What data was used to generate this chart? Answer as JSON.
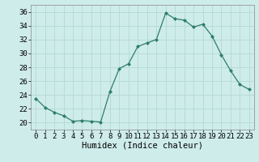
{
  "x": [
    0,
    1,
    2,
    3,
    4,
    5,
    6,
    7,
    8,
    9,
    10,
    11,
    12,
    13,
    14,
    15,
    16,
    17,
    18,
    19,
    20,
    21,
    22,
    23
  ],
  "y": [
    23.5,
    22.2,
    21.5,
    21.0,
    20.2,
    20.3,
    20.2,
    20.1,
    24.5,
    27.8,
    28.5,
    31.0,
    31.5,
    32.0,
    35.8,
    35.0,
    34.8,
    33.8,
    34.2,
    32.5,
    29.8,
    27.5,
    25.5,
    24.8
  ],
  "line_color": "#2d7d6e",
  "marker": "D",
  "marker_size": 2,
  "bg_color": "#ceecea",
  "grid_color": "#b8dbd8",
  "xlabel": "Humidex (Indice chaleur)",
  "ylim": [
    19,
    37
  ],
  "xlim": [
    -0.5,
    23.5
  ],
  "yticks": [
    20,
    22,
    24,
    26,
    28,
    30,
    32,
    34,
    36
  ],
  "xticks": [
    0,
    1,
    2,
    3,
    4,
    5,
    6,
    7,
    8,
    9,
    10,
    11,
    12,
    13,
    14,
    15,
    16,
    17,
    18,
    19,
    20,
    21,
    22,
    23
  ],
  "xlabel_fontsize": 7.5,
  "tick_fontsize": 6.5
}
